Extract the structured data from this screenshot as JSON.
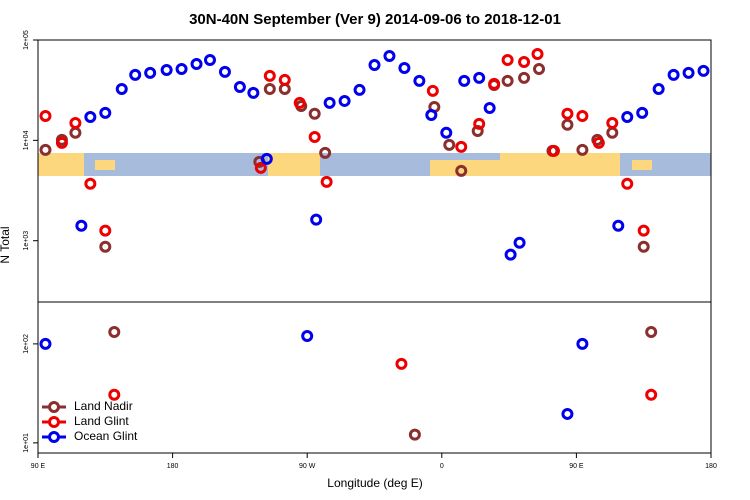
{
  "chart_data": [
    {
      "type": "scatter",
      "title": "30N-40N September (Ver 9)   2014-09-06 to 2018-12-01",
      "y_label": "N Total",
      "log_y": true,
      "xlim": [
        90,
        540
      ],
      "ylim": [
        245,
        100000
      ],
      "yticks": [
        {
          "value": 1000,
          "label": "1e+03"
        },
        {
          "value": 10000,
          "label": "1e+04"
        },
        {
          "value": 100000,
          "label": "1e+05"
        }
      ],
      "series": [
        {
          "color": "#8b2e2e",
          "x": [
            95,
            106,
            115,
            135,
            238,
            245,
            255,
            266,
            275,
            282,
            355,
            365,
            373,
            384,
            395,
            404,
            415,
            425,
            434,
            444,
            454,
            464,
            474,
            495
          ],
          "values": [
            8040,
            10100,
            11900,
            871,
            6110,
            32500,
            32500,
            22000,
            18400,
            7510,
            21500,
            9020,
            4970,
            12400,
            35600,
            39100,
            41900,
            51400,
            7860,
            14300,
            8040,
            10100,
            11900,
            871
          ]
        },
        {
          "color": "#ee0000",
          "x": [
            95,
            106,
            115,
            125,
            135,
            239,
            245,
            255,
            265,
            275,
            283,
            354,
            373,
            385,
            395,
            404,
            415,
            424,
            435,
            444,
            454,
            465,
            474,
            484,
            495
          ],
          "values": [
            17500,
            9440,
            14900,
            3690,
            1260,
            5320,
            43900,
            40000,
            23600,
            10800,
            3860,
            31100,
            8610,
            14600,
            36500,
            63200,
            60300,
            72600,
            7860,
            18400,
            17500,
            9440,
            14900,
            3690,
            1260
          ]
        },
        {
          "color": "#0000ee",
          "x": [
            119,
            125,
            135,
            146,
            155,
            165,
            176,
            186,
            196,
            205,
            215,
            225,
            234,
            243,
            276,
            285,
            295,
            305,
            315,
            325,
            335,
            345,
            353,
            363,
            375,
            385,
            392,
            406,
            412,
            478,
            484,
            494,
            505,
            515,
            525,
            535
          ],
          "values": [
            1410,
            17100,
            18800,
            32500,
            44900,
            47000,
            50200,
            51400,
            57700,
            63200,
            48100,
            34000,
            29700,
            6540,
            1620,
            23600,
            24700,
            31800,
            56400,
            69300,
            52600,
            39100,
            17900,
            11900,
            39100,
            41900,
            21000,
            726,
            955,
            1410,
            17100,
            18800,
            32500,
            44900,
            47000,
            49200
          ]
        }
      ]
    },
    {
      "type": "scatter",
      "x_label": "Longitude (deg E)",
      "log_y": true,
      "legend": "bottom-left",
      "xlim": [
        90,
        540
      ],
      "ylim": [
        7.9,
        265
      ],
      "xticks": [
        {
          "value": 90,
          "label": "90 E"
        },
        180,
        {
          "value": 270,
          "label": "90 W"
        },
        {
          "value": 360,
          "label": "0"
        },
        {
          "value": 450,
          "label": "90 E"
        },
        {
          "value": 540,
          "label": "180"
        }
      ],
      "yticks": [
        {
          "value": 10,
          "label": "1e+01"
        },
        {
          "value": 100,
          "label": "1e+02"
        }
      ],
      "series": [
        {
          "name": "Land Nadir",
          "color": "#8b2e2e",
          "x": [
            141,
            342,
            500
          ],
          "values": [
            132,
            12.1,
            132
          ]
        },
        {
          "name": "Land Glint",
          "color": "#ee0000",
          "x": [
            141,
            333,
            500
          ],
          "values": [
            30.6,
            62.8,
            30.6
          ]
        },
        {
          "name": "Ocean Glint",
          "color": "#0000ee",
          "x": [
            95,
            270,
            444,
            454
          ],
          "values": [
            100,
            120,
            19.6,
            100
          ]
        }
      ]
    }
  ]
}
